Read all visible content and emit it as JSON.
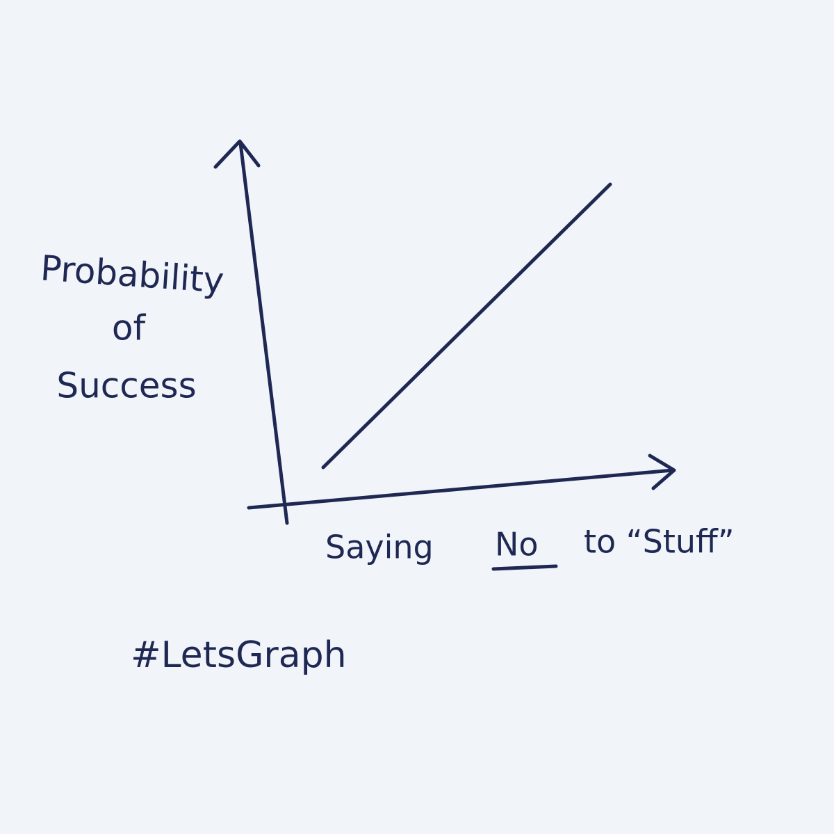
{
  "sketch": {
    "y_axis_label": [
      "Probability",
      "of",
      "Success"
    ],
    "x_axis_label": {
      "before": "Saying",
      "emphasis": "No",
      "after": "to “Stuff”"
    },
    "hashtag": "#LetsGraph"
  }
}
